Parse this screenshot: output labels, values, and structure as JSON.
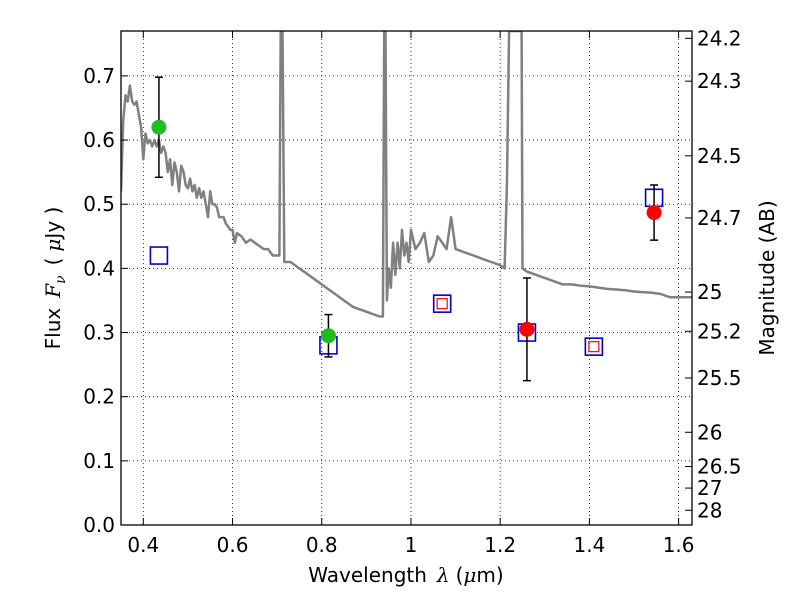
{
  "chart_data": {
    "type": "scatter",
    "title": "",
    "xlabel": "Wavelength",
    "xlabel_symbol": "λ",
    "xlabel_unit_open": "(",
    "xlabel_unit_mu": "μ",
    "xlabel_unit_rest": "m)",
    "ylabel": "Flux",
    "ylabel_symbol": "F",
    "ylabel_sub": "ν",
    "ylabel_unit_open": "(",
    "ylabel_unit_mu": "μ",
    "ylabel_unit_rest": "Jy )",
    "y2label": "Magnitude (AB)",
    "xlim": [
      0.35,
      1.63
    ],
    "ylim": [
      0.0,
      0.77
    ],
    "grid": true,
    "x_ticks": [
      {
        "value": 0.4,
        "label": "0.4"
      },
      {
        "value": 0.6,
        "label": "0.6"
      },
      {
        "value": 0.8,
        "label": "0.8"
      },
      {
        "value": 1.0,
        "label": "1"
      },
      {
        "value": 1.2,
        "label": "1.2"
      },
      {
        "value": 1.4,
        "label": "1.4"
      },
      {
        "value": 1.6,
        "label": "1.6"
      }
    ],
    "y_ticks": [
      {
        "value": 0.0,
        "label": "0.0"
      },
      {
        "value": 0.1,
        "label": "0.1"
      },
      {
        "value": 0.2,
        "label": "0.2"
      },
      {
        "value": 0.3,
        "label": "0.3"
      },
      {
        "value": 0.4,
        "label": "0.4"
      },
      {
        "value": 0.5,
        "label": "0.5"
      },
      {
        "value": 0.6,
        "label": "0.6"
      },
      {
        "value": 0.7,
        "label": "0.7"
      }
    ],
    "y2_ticks": [
      {
        "value": 24.2,
        "label": "24.2"
      },
      {
        "value": 24.3,
        "label": "24.3"
      },
      {
        "value": 24.5,
        "label": "24.5"
      },
      {
        "value": 24.7,
        "label": "24.7"
      },
      {
        "value": 25.0,
        "label": "25"
      },
      {
        "value": 25.2,
        "label": "25.2"
      },
      {
        "value": 25.5,
        "label": "25.5"
      },
      {
        "value": 26.0,
        "label": "26"
      },
      {
        "value": 26.5,
        "label": "26.5"
      },
      {
        "value": 27.0,
        "label": "27"
      },
      {
        "value": 28.0,
        "label": "28"
      }
    ],
    "colors": {
      "sed": "#808080",
      "green": "#22bb22",
      "red": "#ff0000",
      "blue": "#0000cc",
      "errorbar": "#000000"
    },
    "sed_curve": [
      [
        0.35,
        0.52
      ],
      [
        0.355,
        0.63
      ],
      [
        0.36,
        0.67
      ],
      [
        0.365,
        0.66
      ],
      [
        0.37,
        0.685
      ],
      [
        0.375,
        0.66
      ],
      [
        0.38,
        0.655
      ],
      [
        0.385,
        0.66
      ],
      [
        0.39,
        0.64
      ],
      [
        0.395,
        0.62
      ],
      [
        0.4,
        0.57
      ],
      [
        0.405,
        0.61
      ],
      [
        0.41,
        0.595
      ],
      [
        0.415,
        0.6
      ],
      [
        0.42,
        0.59
      ],
      [
        0.425,
        0.6
      ],
      [
        0.43,
        0.59
      ],
      [
        0.435,
        0.6
      ],
      [
        0.44,
        0.58
      ],
      [
        0.445,
        0.59
      ],
      [
        0.45,
        0.58
      ],
      [
        0.455,
        0.55
      ],
      [
        0.46,
        0.57
      ],
      [
        0.465,
        0.53
      ],
      [
        0.47,
        0.565
      ],
      [
        0.475,
        0.55
      ],
      [
        0.48,
        0.52
      ],
      [
        0.485,
        0.56
      ],
      [
        0.49,
        0.55
      ],
      [
        0.495,
        0.53
      ],
      [
        0.5,
        0.525
      ],
      [
        0.505,
        0.54
      ],
      [
        0.51,
        0.52
      ],
      [
        0.515,
        0.53
      ],
      [
        0.52,
        0.51
      ],
      [
        0.525,
        0.525
      ],
      [
        0.53,
        0.51
      ],
      [
        0.535,
        0.52
      ],
      [
        0.54,
        0.5
      ],
      [
        0.545,
        0.48
      ],
      [
        0.55,
        0.52
      ],
      [
        0.555,
        0.5
      ],
      [
        0.56,
        0.5
      ],
      [
        0.565,
        0.495
      ],
      [
        0.57,
        0.48
      ],
      [
        0.58,
        0.48
      ],
      [
        0.585,
        0.47
      ],
      [
        0.59,
        0.465
      ],
      [
        0.595,
        0.46
      ],
      [
        0.6,
        0.46
      ],
      [
        0.605,
        0.44
      ],
      [
        0.61,
        0.455
      ],
      [
        0.62,
        0.45
      ],
      [
        0.63,
        0.44
      ],
      [
        0.64,
        0.445
      ],
      [
        0.65,
        0.44
      ],
      [
        0.66,
        0.435
      ],
      [
        0.67,
        0.43
      ],
      [
        0.68,
        0.43
      ],
      [
        0.69,
        0.42
      ],
      [
        0.7,
        0.42
      ],
      [
        0.705,
        0.42
      ],
      [
        0.708,
        0.77
      ],
      [
        0.712,
        0.77
      ],
      [
        0.716,
        0.41
      ],
      [
        0.73,
        0.41
      ],
      [
        0.75,
        0.4
      ],
      [
        0.77,
        0.39
      ],
      [
        0.79,
        0.38
      ],
      [
        0.81,
        0.37
      ],
      [
        0.83,
        0.36
      ],
      [
        0.85,
        0.35
      ],
      [
        0.87,
        0.34
      ],
      [
        0.89,
        0.335
      ],
      [
        0.91,
        0.33
      ],
      [
        0.93,
        0.325
      ],
      [
        0.937,
        0.325
      ],
      [
        0.94,
        0.77
      ],
      [
        0.943,
        0.77
      ],
      [
        0.946,
        0.35
      ],
      [
        0.95,
        0.4
      ],
      [
        0.955,
        0.37
      ],
      [
        0.96,
        0.44
      ],
      [
        0.965,
        0.39
      ],
      [
        0.97,
        0.44
      ],
      [
        0.975,
        0.4
      ],
      [
        0.98,
        0.46
      ],
      [
        0.985,
        0.42
      ],
      [
        0.99,
        0.44
      ],
      [
        0.995,
        0.41
      ],
      [
        1.0,
        0.46
      ],
      [
        1.01,
        0.43
      ],
      [
        1.02,
        0.44
      ],
      [
        1.03,
        0.455
      ],
      [
        1.04,
        0.41
      ],
      [
        1.05,
        0.42
      ],
      [
        1.06,
        0.45
      ],
      [
        1.07,
        0.44
      ],
      [
        1.08,
        0.43
      ],
      [
        1.09,
        0.48
      ],
      [
        1.1,
        0.43
      ],
      [
        1.12,
        0.425
      ],
      [
        1.14,
        0.42
      ],
      [
        1.16,
        0.415
      ],
      [
        1.18,
        0.41
      ],
      [
        1.2,
        0.405
      ],
      [
        1.21,
        0.4
      ],
      [
        1.215,
        0.53
      ],
      [
        1.22,
        0.77
      ],
      [
        1.248,
        0.77
      ],
      [
        1.25,
        0.4
      ],
      [
        1.26,
        0.395
      ],
      [
        1.28,
        0.39
      ],
      [
        1.3,
        0.385
      ],
      [
        1.32,
        0.38
      ],
      [
        1.34,
        0.375
      ],
      [
        1.36,
        0.375
      ],
      [
        1.38,
        0.373
      ],
      [
        1.4,
        0.372
      ],
      [
        1.42,
        0.37
      ],
      [
        1.44,
        0.368
      ],
      [
        1.46,
        0.367
      ],
      [
        1.48,
        0.366
      ],
      [
        1.5,
        0.364
      ],
      [
        1.52,
        0.363
      ],
      [
        1.54,
        0.362
      ],
      [
        1.56,
        0.36
      ],
      [
        1.58,
        0.355
      ],
      [
        1.6,
        0.355
      ],
      [
        1.63,
        0.355
      ]
    ],
    "observed_points": [
      {
        "x": 0.435,
        "y": 0.62,
        "yerr": 0.078,
        "color": "green"
      },
      {
        "x": 0.815,
        "y": 0.295,
        "yerr": 0.033,
        "color": "green"
      },
      {
        "x": 1.26,
        "y": 0.305,
        "yerr": 0.08,
        "color": "red"
      },
      {
        "x": 1.545,
        "y": 0.487,
        "yerr": 0.043,
        "color": "red"
      }
    ],
    "model_points": [
      {
        "x": 0.435,
        "y": 0.42,
        "inner": false
      },
      {
        "x": 0.815,
        "y": 0.28,
        "inner": false
      },
      {
        "x": 1.07,
        "y": 0.345,
        "inner": true
      },
      {
        "x": 1.26,
        "y": 0.3,
        "inner": false
      },
      {
        "x": 1.41,
        "y": 0.278,
        "inner": true
      },
      {
        "x": 1.545,
        "y": 0.51,
        "inner": false
      }
    ]
  }
}
